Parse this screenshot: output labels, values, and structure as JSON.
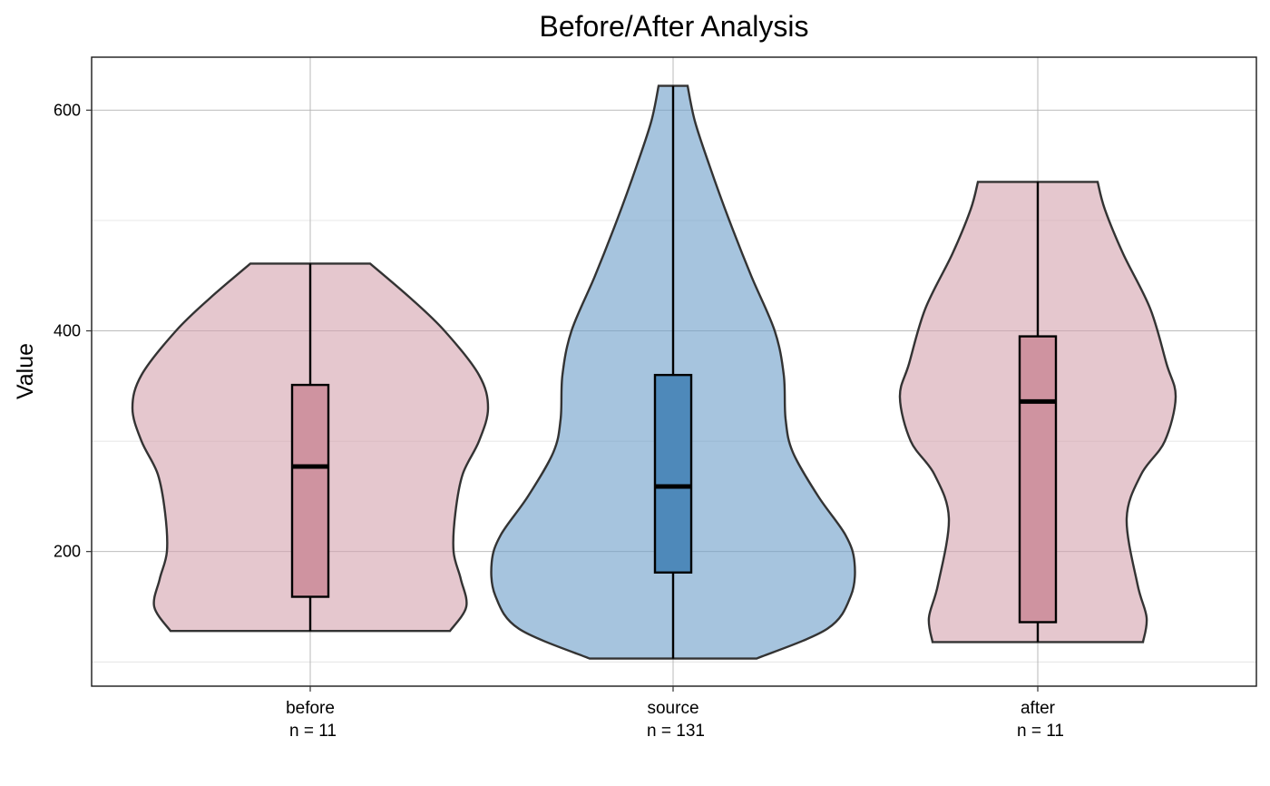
{
  "chart_data": {
    "type": "violin",
    "title": "Before/After Analysis",
    "xlabel": "",
    "ylabel": "Value",
    "ylim": [
      78,
      648
    ],
    "yticks": [
      200,
      400,
      600
    ],
    "grid": true,
    "categories": [
      {
        "name": "before",
        "n_label": "n = 11",
        "color": "#d4a1ae",
        "box_color": "#cf93a0",
        "min": 128,
        "q1": 159,
        "median": 277,
        "q3": 351,
        "max": 461,
        "density": [
          [
            128,
            0.77
          ],
          [
            150,
            0.86
          ],
          [
            175,
            0.83
          ],
          [
            200,
            0.79
          ],
          [
            235,
            0.8
          ],
          [
            270,
            0.84
          ],
          [
            300,
            0.93
          ],
          [
            330,
            0.98
          ],
          [
            360,
            0.93
          ],
          [
            400,
            0.74
          ],
          [
            430,
            0.55
          ],
          [
            461,
            0.33
          ]
        ]
      },
      {
        "name": "source",
        "n_label": "n = 131",
        "color": "#6a9cc8",
        "box_color": "#4e89ba",
        "min": 103,
        "q1": 181,
        "median": 259,
        "q3": 360,
        "max": 622,
        "density": [
          [
            103,
            0.46
          ],
          [
            130,
            0.85
          ],
          [
            160,
            0.98
          ],
          [
            190,
            1.0
          ],
          [
            215,
            0.95
          ],
          [
            250,
            0.8
          ],
          [
            290,
            0.66
          ],
          [
            320,
            0.62
          ],
          [
            360,
            0.61
          ],
          [
            400,
            0.56
          ],
          [
            450,
            0.43
          ],
          [
            500,
            0.31
          ],
          [
            550,
            0.2
          ],
          [
            590,
            0.12
          ],
          [
            622,
            0.08
          ]
        ]
      },
      {
        "name": "after",
        "n_label": "n = 11",
        "color": "#d4a1ae",
        "box_color": "#cf93a0",
        "min": 118,
        "q1": 136,
        "median": 336,
        "q3": 395,
        "max": 535,
        "density": [
          [
            118,
            0.58
          ],
          [
            140,
            0.6
          ],
          [
            170,
            0.55
          ],
          [
            230,
            0.49
          ],
          [
            270,
            0.57
          ],
          [
            300,
            0.7
          ],
          [
            340,
            0.76
          ],
          [
            370,
            0.71
          ],
          [
            420,
            0.62
          ],
          [
            470,
            0.47
          ],
          [
            510,
            0.37
          ],
          [
            535,
            0.33
          ]
        ]
      }
    ]
  }
}
